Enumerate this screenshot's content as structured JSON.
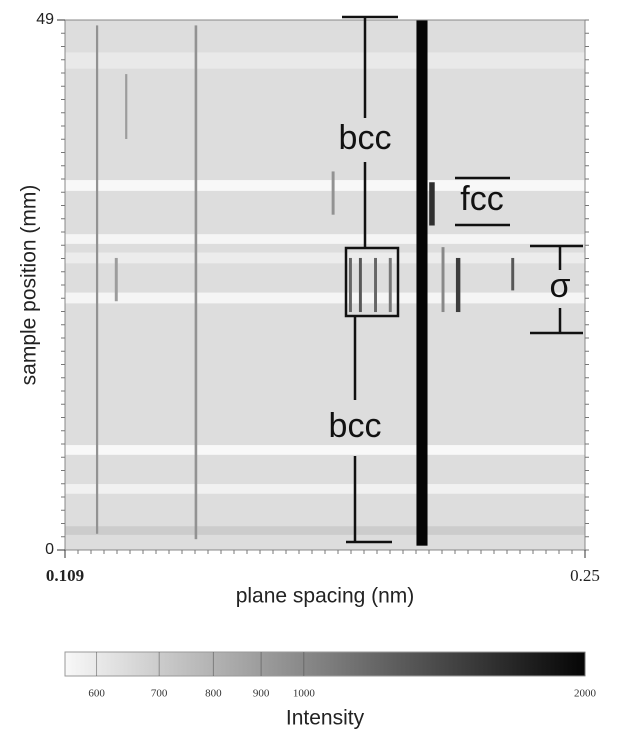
{
  "chart_data": {
    "type": "heatmap",
    "xlabel": "plane spacing (nm)",
    "ylabel": "sample position (mm)",
    "xlim": [
      0.109,
      0.25
    ],
    "xticks": [
      0.109,
      0.25
    ],
    "ylim": [
      0,
      49
    ],
    "yticks": [
      0,
      49
    ],
    "background": 640,
    "bands": [
      {
        "y0": 44.5,
        "y1": 46,
        "value": 600
      },
      {
        "y0": 33.2,
        "y1": 34.2,
        "value": 555
      },
      {
        "y0": 28.3,
        "y1": 29.2,
        "value": 565
      },
      {
        "y0": 26.5,
        "y1": 27.5,
        "value": 590
      },
      {
        "y0": 22.8,
        "y1": 23.8,
        "value": 565
      },
      {
        "y0": 8.8,
        "y1": 9.7,
        "value": 555
      },
      {
        "y0": 5.2,
        "y1": 6.1,
        "value": 575
      },
      {
        "y0": 1.4,
        "y1": 2.2,
        "value": 700
      }
    ],
    "streaks": [
      {
        "x": 0.2058,
        "width": 0.003,
        "y0": 0.4,
        "y1": 49,
        "value": 2000
      },
      {
        "x": 0.1177,
        "width": 0.0006,
        "y0": 1.5,
        "y1": 48.5,
        "value": 950
      },
      {
        "x": 0.1445,
        "width": 0.0007,
        "y0": 1.0,
        "y1": 48.5,
        "value": 950
      },
      {
        "x": 0.1256,
        "width": 0.0006,
        "y0": 38,
        "y1": 44,
        "value": 900
      },
      {
        "x": 0.1817,
        "width": 0.0008,
        "y0": 31,
        "y1": 35,
        "value": 950
      },
      {
        "x": 0.2085,
        "width": 0.0015,
        "y0": 30,
        "y1": 34,
        "value": 1600
      },
      {
        "x": 0.2156,
        "width": 0.0012,
        "y0": 22,
        "y1": 27,
        "value": 1500
      },
      {
        "x": 0.2304,
        "width": 0.0008,
        "y0": 24,
        "y1": 27,
        "value": 1300
      },
      {
        "x": 0.1864,
        "width": 0.0008,
        "y0": 22,
        "y1": 27,
        "value": 1200
      },
      {
        "x": 0.1891,
        "width": 0.0008,
        "y0": 22,
        "y1": 27,
        "value": 1300
      },
      {
        "x": 0.1932,
        "width": 0.0008,
        "y0": 22,
        "y1": 27,
        "value": 1200
      },
      {
        "x": 0.1972,
        "width": 0.0008,
        "y0": 22,
        "y1": 27,
        "value": 1100
      },
      {
        "x": 0.1229,
        "width": 0.0008,
        "y0": 23,
        "y1": 27,
        "value": 900
      },
      {
        "x": 0.2115,
        "width": 0.0008,
        "y0": 22,
        "y1": 28,
        "value": 1000
      }
    ],
    "colorbar": {
      "label": "Intensity",
      "clim": [
        555,
        2000
      ],
      "log": true,
      "ticks": [
        600,
        700,
        800,
        900,
        1000,
        2000
      ]
    },
    "annotations": [
      "bcc",
      "bcc",
      "fcc",
      "σ"
    ]
  }
}
